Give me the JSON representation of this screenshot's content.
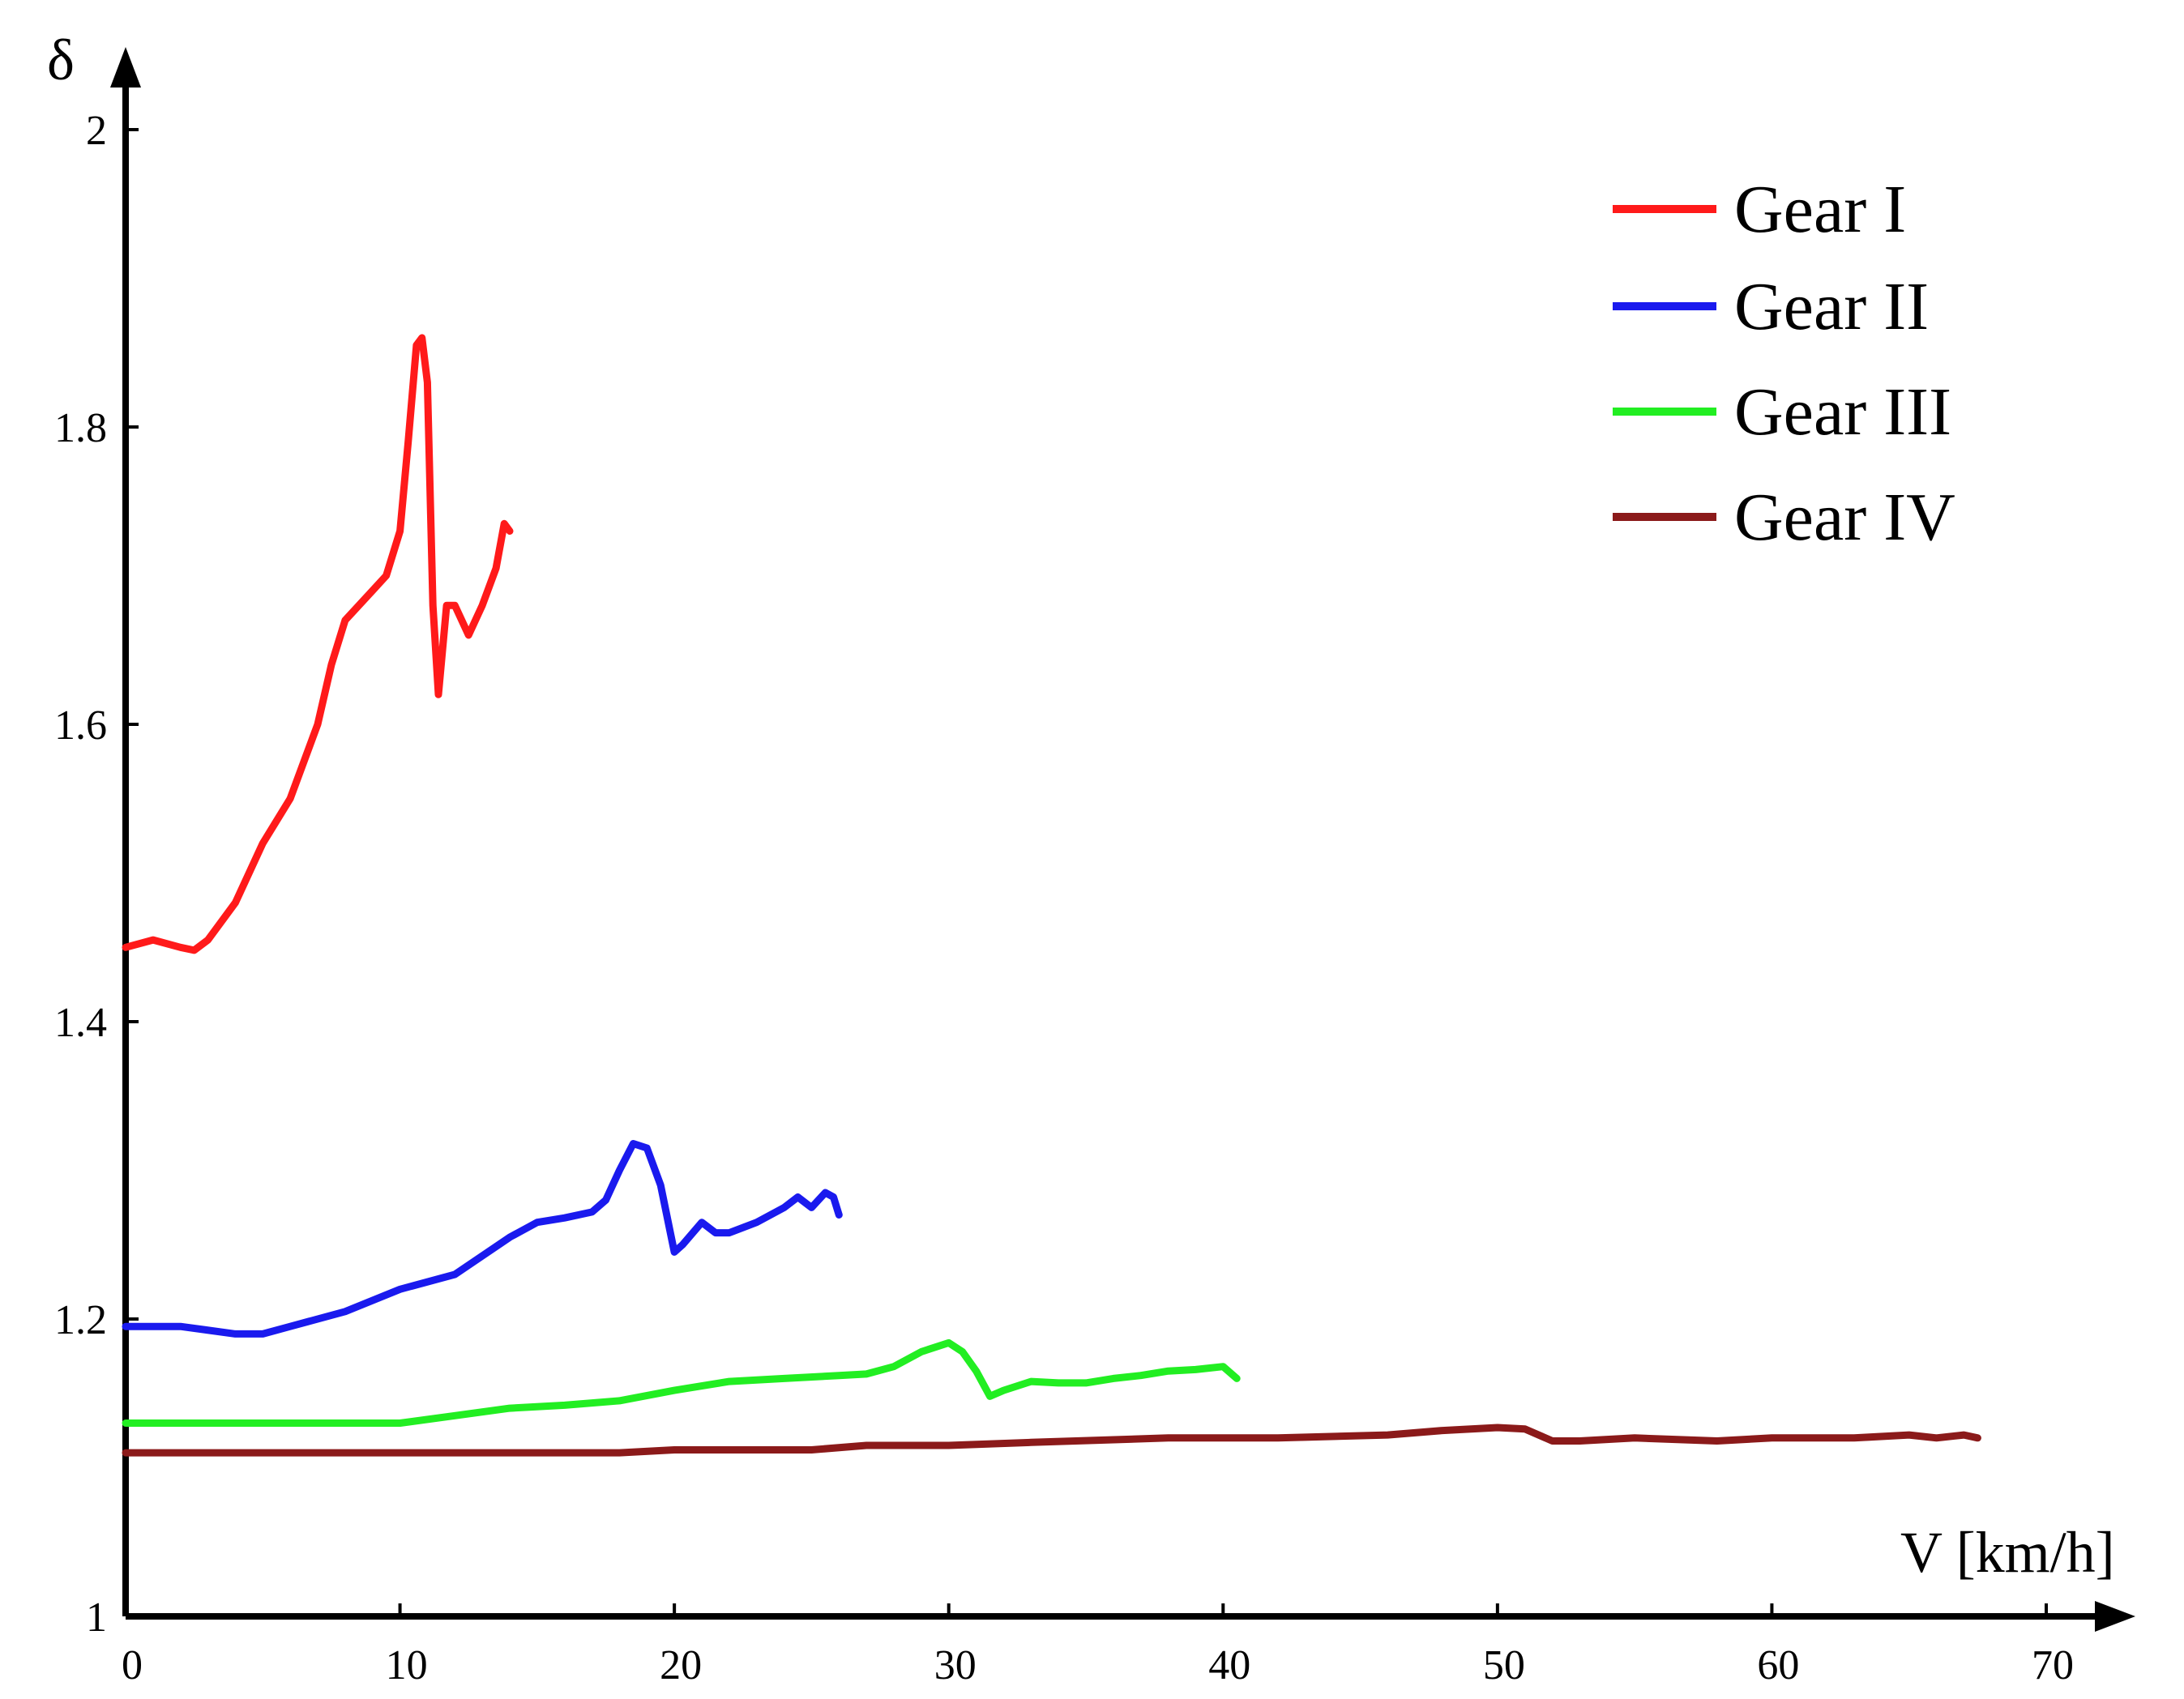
{
  "chart_data": {
    "type": "line",
    "title": "",
    "xlabel": "V [km/h]",
    "ylabel": "δ",
    "xlim": [
      0,
      70
    ],
    "ylim": [
      1,
      2
    ],
    "xticks": [
      0,
      10,
      20,
      30,
      40,
      50,
      60,
      70
    ],
    "yticks": [
      1,
      1.2,
      1.4,
      1.6,
      1.8,
      2
    ],
    "x_tick_labels": [
      "0",
      "10",
      "20",
      "30",
      "40",
      "50",
      "60",
      "70"
    ],
    "y_tick_labels": [
      "1",
      "1.2",
      "1.4",
      "1.6",
      "1.8",
      "2"
    ],
    "grid": false,
    "legend_position": "top-right",
    "series": [
      {
        "name": "Gear I",
        "color": "#ff1a1a",
        "x": [
          0,
          1,
          2,
          2.5,
          3,
          4,
          5,
          6,
          7,
          7.5,
          8,
          9,
          9.5,
          10,
          10.3,
          10.6,
          10.8,
          11,
          11.2,
          11.4,
          11.7,
          12,
          12.5,
          13,
          13.5,
          13.8,
          14
        ],
        "y": [
          1.45,
          1.455,
          1.45,
          1.448,
          1.455,
          1.48,
          1.52,
          1.55,
          1.6,
          1.64,
          1.67,
          1.69,
          1.7,
          1.73,
          1.79,
          1.855,
          1.86,
          1.83,
          1.68,
          1.62,
          1.68,
          1.68,
          1.66,
          1.68,
          1.705,
          1.735,
          1.73
        ]
      },
      {
        "name": "Gear II",
        "color": "#1a1aee",
        "x": [
          0,
          2,
          4,
          5,
          6,
          8,
          10,
          12,
          14,
          15,
          16,
          17,
          17.5,
          18,
          18.5,
          19,
          19.5,
          20,
          20.3,
          21,
          21.5,
          22,
          23,
          24,
          24.5,
          25,
          25.5,
          25.8,
          26
        ],
        "y": [
          1.195,
          1.195,
          1.19,
          1.19,
          1.195,
          1.205,
          1.22,
          1.23,
          1.255,
          1.265,
          1.268,
          1.272,
          1.28,
          1.3,
          1.318,
          1.315,
          1.29,
          1.245,
          1.25,
          1.265,
          1.258,
          1.258,
          1.265,
          1.275,
          1.282,
          1.275,
          1.285,
          1.282,
          1.27
        ]
      },
      {
        "name": "Gear III",
        "color": "#22ee22",
        "x": [
          0,
          5,
          10,
          12,
          14,
          16,
          18,
          20,
          22,
          24,
          26,
          27,
          28,
          29,
          30,
          30.5,
          31,
          31.5,
          32,
          33,
          34,
          35,
          36,
          37,
          38,
          39,
          40,
          40.5
        ],
        "y": [
          1.13,
          1.13,
          1.13,
          1.135,
          1.14,
          1.142,
          1.145,
          1.152,
          1.158,
          1.16,
          1.162,
          1.163,
          1.168,
          1.178,
          1.184,
          1.178,
          1.165,
          1.148,
          1.152,
          1.158,
          1.157,
          1.157,
          1.16,
          1.162,
          1.165,
          1.166,
          1.168,
          1.16
        ]
      },
      {
        "name": "Gear IV",
        "color": "#8b1a1a",
        "x": [
          0,
          10,
          18,
          20,
          25,
          27,
          30,
          33,
          38,
          42,
          46,
          48,
          50,
          51,
          52,
          53,
          55,
          58,
          60,
          63,
          65,
          66,
          67,
          67.5
        ],
        "y": [
          1.11,
          1.11,
          1.11,
          1.112,
          1.112,
          1.115,
          1.115,
          1.117,
          1.12,
          1.12,
          1.122,
          1.125,
          1.127,
          1.126,
          1.118,
          1.118,
          1.12,
          1.118,
          1.12,
          1.12,
          1.122,
          1.12,
          1.122,
          1.12
        ]
      }
    ]
  }
}
